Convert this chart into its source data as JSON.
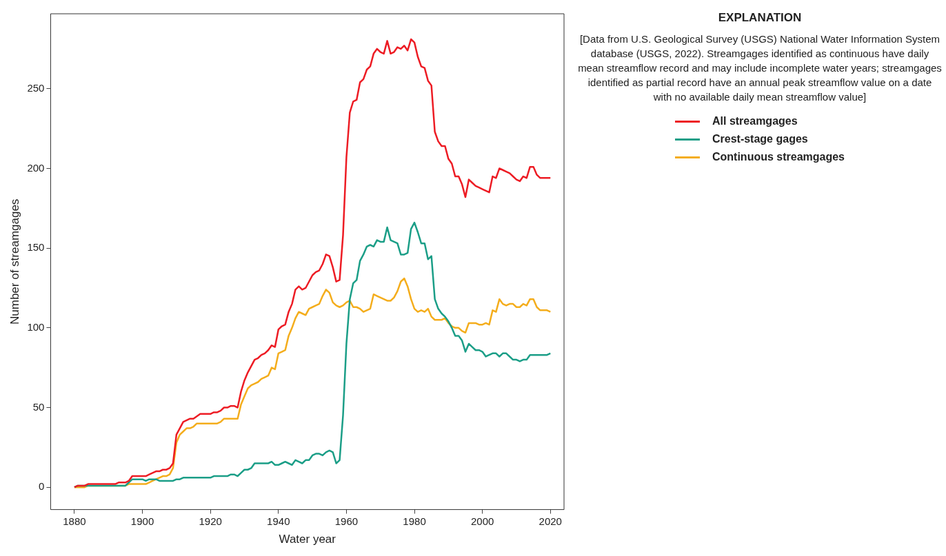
{
  "chart_data": {
    "type": "line",
    "xlabel": "Water year",
    "ylabel": "Number of streamgages",
    "legend_title": "EXPLANATION",
    "legend": "right",
    "grid": false,
    "marker": "none",
    "line_style": "solid",
    "annotations": [
      "[Data from U.S. Geological Survey (USGS) National Water Information System database (USGS, 2022). Streamgages identified as continuous have daily mean streamflow record and may include incomplete water years; streamgages identified as partial record have an annual peak streamflow value on a date with no available daily mean streamflow value]"
    ],
    "xlim": [
      1873,
      2024
    ],
    "xticks": [
      1880,
      1900,
      1920,
      1940,
      1960,
      1980,
      2000,
      2020
    ],
    "ylim": [
      -14,
      297
    ],
    "yticks": [
      0,
      50,
      100,
      150,
      200,
      250
    ],
    "series": [
      {
        "name": "All streamgages",
        "color": "#ed1c24",
        "x": [
          1880,
          1881,
          1883,
          1884,
          1892,
          1893,
          1895,
          1896,
          1897,
          1901,
          1902,
          1904,
          1905,
          1906,
          1907,
          1908,
          1909,
          1910,
          1911,
          1912,
          1914,
          1915,
          1917,
          1920,
          1921,
          1922,
          1923,
          1924,
          1925,
          1926,
          1927,
          1928,
          1929,
          1930,
          1931,
          1932,
          1933,
          1934,
          1935,
          1936,
          1937,
          1938,
          1939,
          1940,
          1941,
          1942,
          1943,
          1944,
          1945,
          1946,
          1947,
          1948,
          1949,
          1950,
          1951,
          1952,
          1953,
          1954,
          1955,
          1956,
          1957,
          1958,
          1959,
          1960,
          1961,
          1962,
          1963,
          1964,
          1965,
          1966,
          1967,
          1968,
          1969,
          1970,
          1971,
          1972,
          1973,
          1974,
          1975,
          1976,
          1977,
          1978,
          1979,
          1980,
          1981,
          1982,
          1983,
          1984,
          1985,
          1986,
          1987,
          1988,
          1989,
          1990,
          1991,
          1992,
          1993,
          1994,
          1995,
          1996,
          1997,
          1998,
          1999,
          2000,
          2001,
          2002,
          2003,
          2004,
          2005,
          2006,
          2007,
          2008,
          2009,
          2010,
          2011,
          2012,
          2013,
          2014,
          2015,
          2016,
          2017,
          2018,
          2020
        ],
        "values": [
          0,
          1,
          1,
          2,
          2,
          3,
          3,
          4,
          7,
          7,
          8,
          10,
          10,
          11,
          11,
          12,
          15,
          33,
          37,
          41,
          43,
          43,
          46,
          46,
          47,
          47,
          48,
          50,
          50,
          51,
          51,
          50,
          60,
          67,
          72,
          76,
          80,
          81,
          83,
          84,
          86,
          89,
          88,
          99,
          101,
          102,
          110,
          115,
          124,
          126,
          124,
          125,
          129,
          133,
          135,
          136,
          140,
          146,
          145,
          138,
          129,
          130,
          158,
          207,
          235,
          242,
          243,
          254,
          256,
          262,
          264,
          272,
          275,
          273,
          272,
          280,
          272,
          273,
          276,
          275,
          277,
          274,
          281,
          279,
          270,
          264,
          263,
          255,
          252,
          223,
          217,
          214,
          214,
          206,
          203,
          195,
          195,
          190,
          182,
          193,
          191,
          189,
          188,
          187,
          186,
          185,
          195,
          194,
          200,
          199,
          198,
          197,
          195,
          193,
          192,
          195,
          194,
          201,
          201,
          196,
          194,
          194,
          194
        ]
      },
      {
        "name": "Crest-stage gages",
        "color": "#1b9e87",
        "x": [
          1880,
          1881,
          1884,
          1895,
          1896,
          1897,
          1900,
          1901,
          1902,
          1904,
          1905,
          1909,
          1910,
          1911,
          1912,
          1920,
          1921,
          1925,
          1926,
          1927,
          1928,
          1929,
          1930,
          1931,
          1932,
          1933,
          1937,
          1938,
          1939,
          1940,
          1941,
          1942,
          1943,
          1944,
          1945,
          1946,
          1947,
          1948,
          1949,
          1950,
          1951,
          1952,
          1953,
          1954,
          1955,
          1956,
          1957,
          1958,
          1959,
          1960,
          1961,
          1962,
          1963,
          1964,
          1965,
          1966,
          1967,
          1968,
          1969,
          1970,
          1971,
          1972,
          1973,
          1974,
          1975,
          1976,
          1977,
          1978,
          1979,
          1980,
          1981,
          1982,
          1983,
          1984,
          1985,
          1986,
          1987,
          1988,
          1989,
          1990,
          1991,
          1992,
          1993,
          1994,
          1995,
          1996,
          1997,
          1998,
          1999,
          2000,
          2001,
          2002,
          2003,
          2004,
          2005,
          2006,
          2007,
          2008,
          2009,
          2010,
          2011,
          2012,
          2013,
          2014,
          2019,
          2020
        ],
        "values": [
          0,
          1,
          1,
          1,
          3,
          5,
          5,
          4,
          5,
          5,
          4,
          4,
          5,
          5,
          6,
          6,
          7,
          7,
          8,
          8,
          7,
          9,
          11,
          11,
          12,
          15,
          15,
          16,
          14,
          14,
          15,
          16,
          15,
          14,
          17,
          16,
          15,
          17,
          17,
          20,
          21,
          21,
          20,
          22,
          23,
          22,
          15,
          17,
          45,
          90,
          118,
          128,
          130,
          142,
          146,
          151,
          152,
          151,
          155,
          154,
          154,
          163,
          155,
          154,
          153,
          146,
          146,
          147,
          162,
          166,
          160,
          153,
          153,
          143,
          145,
          118,
          112,
          109,
          107,
          104,
          100,
          95,
          95,
          92,
          85,
          90,
          88,
          86,
          86,
          85,
          82,
          83,
          84,
          84,
          82,
          84,
          84,
          82,
          80,
          80,
          79,
          80,
          80,
          83,
          83,
          84
        ]
      },
      {
        "name": "Continuous streamgages",
        "color": "#f4ad1c",
        "x": [
          1880,
          1883,
          1884,
          1895,
          1896,
          1901,
          1902,
          1903,
          1904,
          1905,
          1906,
          1907,
          1908,
          1909,
          1910,
          1911,
          1912,
          1913,
          1914,
          1915,
          1916,
          1922,
          1923,
          1924,
          1928,
          1929,
          1930,
          1931,
          1932,
          1933,
          1934,
          1935,
          1936,
          1937,
          1938,
          1939,
          1940,
          1941,
          1942,
          1943,
          1944,
          1945,
          1946,
          1947,
          1948,
          1949,
          1950,
          1951,
          1952,
          1953,
          1954,
          1955,
          1956,
          1957,
          1958,
          1959,
          1960,
          1961,
          1962,
          1963,
          1964,
          1965,
          1966,
          1967,
          1968,
          1969,
          1970,
          1971,
          1972,
          1973,
          1974,
          1975,
          1976,
          1977,
          1978,
          1979,
          1980,
          1981,
          1982,
          1983,
          1984,
          1985,
          1986,
          1987,
          1988,
          1989,
          1990,
          1991,
          1992,
          1993,
          1994,
          1995,
          1996,
          1997,
          1998,
          1999,
          2000,
          2001,
          2002,
          2003,
          2004,
          2005,
          2006,
          2007,
          2008,
          2009,
          2010,
          2011,
          2012,
          2013,
          2014,
          2015,
          2016,
          2017,
          2018,
          2019,
          2020
        ],
        "values": [
          0,
          0,
          1,
          1,
          2,
          2,
          3,
          4,
          5,
          6,
          7,
          7,
          8,
          12,
          28,
          33,
          35,
          37,
          37,
          38,
          40,
          40,
          41,
          43,
          43,
          52,
          57,
          62,
          64,
          65,
          66,
          68,
          69,
          70,
          75,
          74,
          84,
          85,
          86,
          95,
          100,
          106,
          110,
          109,
          108,
          112,
          113,
          114,
          115,
          120,
          124,
          122,
          116,
          114,
          113,
          114,
          116,
          117,
          113,
          113,
          112,
          110,
          111,
          112,
          121,
          120,
          119,
          118,
          117,
          117,
          119,
          123,
          129,
          131,
          126,
          118,
          112,
          110,
          111,
          110,
          112,
          107,
          105,
          105,
          105,
          106,
          103,
          101,
          100,
          100,
          98,
          97,
          103,
          103,
          103,
          102,
          102,
          103,
          102,
          111,
          110,
          118,
          115,
          114,
          115,
          115,
          113,
          113,
          115,
          114,
          118,
          118,
          113,
          111,
          111,
          111,
          110
        ]
      }
    ]
  }
}
